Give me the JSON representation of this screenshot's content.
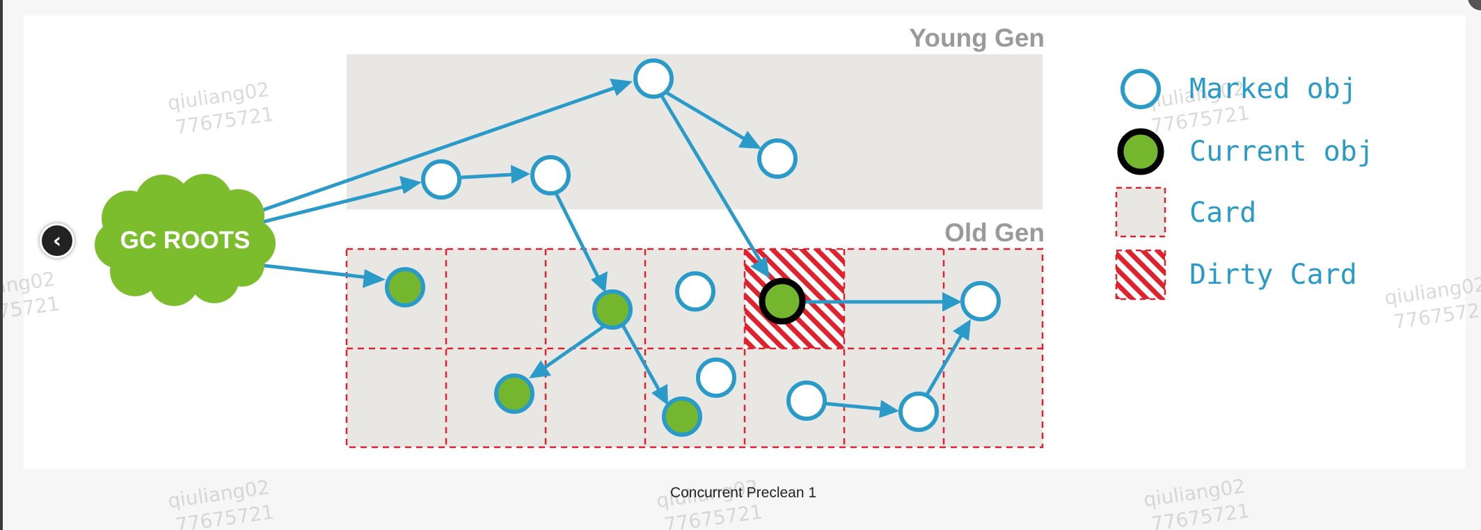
{
  "diagram": {
    "region_labels": {
      "young": "Young Gen",
      "old": "Old Gen"
    },
    "gc_roots_label": "GC ROOTS",
    "legend": [
      {
        "key": "marked",
        "label": "Marked obj"
      },
      {
        "key": "current",
        "label": "Current obj"
      },
      {
        "key": "card",
        "label": "Card"
      },
      {
        "key": "dirty",
        "label": "Dirty Card"
      }
    ],
    "watermark": [
      "qiuliang02",
      "77675721"
    ],
    "colors": {
      "marked_ring": "#2a9bc8",
      "current_fill": "#74b72e",
      "gc_cloud": "#7cbd2e",
      "dirty_card": "#e0212e",
      "region_bg": "#e8e7e4",
      "arrow": "#2a9bc8"
    }
  },
  "caption": "Concurrent Preclean 1",
  "nav": {
    "back_icon": "chevron-left-icon"
  }
}
